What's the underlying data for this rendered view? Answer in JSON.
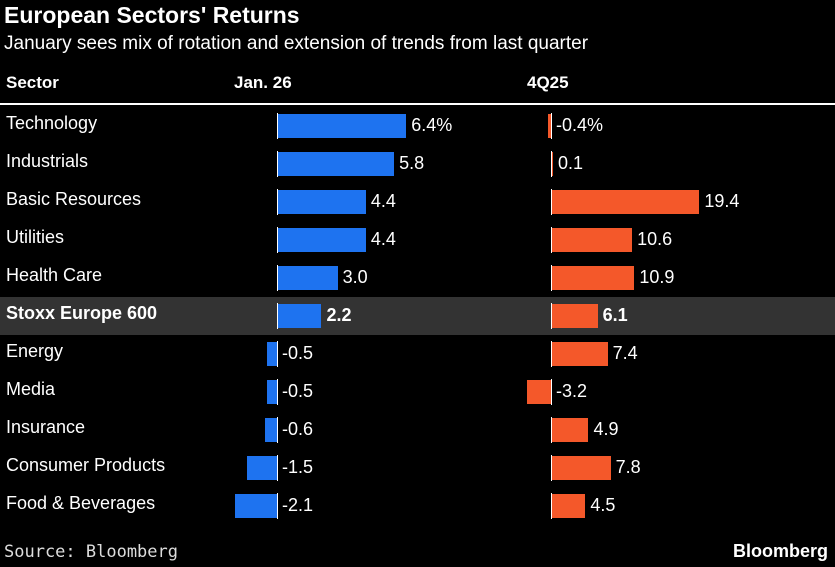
{
  "title": "European Sectors' Returns",
  "subtitle": "January sees mix of rotation and extension of trends from last quarter",
  "headers": {
    "sector": "Sector",
    "jan": "Jan. 26",
    "q4": "4Q25"
  },
  "source": "Source: Bloomberg",
  "brand": "Bloomberg",
  "colors": {
    "jan": "#1e73f0",
    "q4": "#f4582a",
    "highlight": "#333333"
  },
  "chart_data": {
    "type": "bar",
    "title": "European Sectors' Returns",
    "categories": [
      "Technology",
      "Industrials",
      "Basic Resources",
      "Utilities",
      "Health Care",
      "Stoxx Europe 600",
      "Energy",
      "Media",
      "Insurance",
      "Consumer Products",
      "Food & Beverages"
    ],
    "highlight_category": "Stoxx Europe 600",
    "series": [
      {
        "name": "Jan. 26",
        "values": [
          6.4,
          5.8,
          4.4,
          4.4,
          3.0,
          2.2,
          -0.5,
          -0.5,
          -0.6,
          -1.5,
          -2.1
        ],
        "labels": [
          "6.4%",
          "5.8",
          "4.4",
          "4.4",
          "3.0",
          "2.2",
          "-0.5",
          "-0.5",
          "-0.6",
          "-1.5",
          "-2.1"
        ]
      },
      {
        "name": "4Q25",
        "values": [
          -0.4,
          0.1,
          19.4,
          10.6,
          10.9,
          6.1,
          7.4,
          -3.2,
          4.9,
          7.8,
          4.5
        ],
        "labels": [
          "-0.4%",
          "0.1",
          "19.4",
          "10.6",
          "10.9",
          "6.1",
          "7.4",
          "-3.2",
          "4.9",
          "7.8",
          "4.5"
        ]
      }
    ]
  }
}
